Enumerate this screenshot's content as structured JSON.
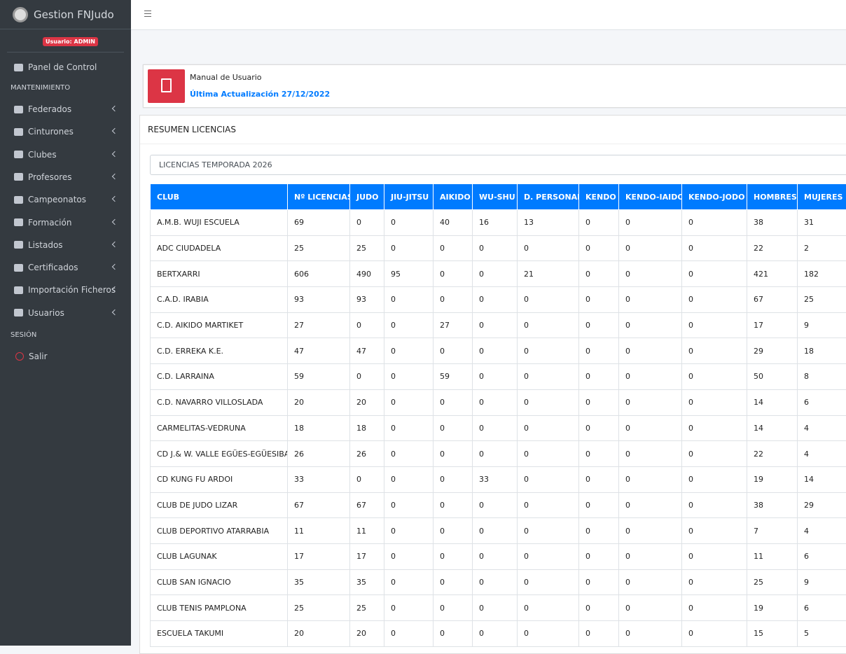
{
  "sidebar": {
    "brand": "Gestion FNJudo",
    "badge": "Usuario: ADMIN",
    "top_item": "Panel de Control",
    "sections": [
      {
        "header": "MANTENIMIENTO",
        "items": [
          "Federados",
          "Cinturones",
          "Clubes",
          "Profesores",
          "Campeonatos",
          "Formación",
          "Listados",
          "Certificados",
          "Importación Ficheros",
          "Usuarios"
        ]
      },
      {
        "header": "SESIÓN",
        "items": [
          "Salir"
        ]
      }
    ]
  },
  "manual": {
    "title": "Manual de Usuario",
    "updated": "Última Actualización 27/12/2022"
  },
  "summary": {
    "title": "RESUMEN LICENCIAS",
    "select": "LICENCIAS TEMPORADA 2026"
  },
  "table": {
    "headers": [
      "CLUB",
      "Nº LICENCIAS",
      "JUDO",
      "JIU-JITSU",
      "AIKIDO",
      "WU-SHU",
      "D. PERSONAL",
      "KENDO",
      "KENDO-IAIDO",
      "KENDO-JODO",
      "HOMBRES",
      "MUJERES"
    ],
    "rows": [
      [
        "A.M.B. WUJI ESCUELA",
        69,
        0,
        0,
        40,
        16,
        13,
        0,
        0,
        0,
        38,
        31
      ],
      [
        "ADC CIUDADELA",
        25,
        25,
        0,
        0,
        0,
        0,
        0,
        0,
        0,
        22,
        2
      ],
      [
        "BERTXARRI",
        606,
        490,
        95,
        0,
        0,
        21,
        0,
        0,
        0,
        421,
        182
      ],
      [
        "C.A.D. IRABIA",
        93,
        93,
        0,
        0,
        0,
        0,
        0,
        0,
        0,
        67,
        25
      ],
      [
        "C.D. AIKIDO MARTIKET",
        27,
        0,
        0,
        27,
        0,
        0,
        0,
        0,
        0,
        17,
        9
      ],
      [
        "C.D. ERREKA K.E.",
        47,
        47,
        0,
        0,
        0,
        0,
        0,
        0,
        0,
        29,
        18
      ],
      [
        "C.D. LARRAINA",
        59,
        0,
        0,
        59,
        0,
        0,
        0,
        0,
        0,
        50,
        8
      ],
      [
        "C.D. NAVARRO VILLOSLADA",
        20,
        20,
        0,
        0,
        0,
        0,
        0,
        0,
        0,
        14,
        6
      ],
      [
        "CARMELITAS-VEDRUNA",
        18,
        18,
        0,
        0,
        0,
        0,
        0,
        0,
        0,
        14,
        4
      ],
      [
        "CD J.& W. VALLE EGÜES-EGÜESIBAR",
        26,
        26,
        0,
        0,
        0,
        0,
        0,
        0,
        0,
        22,
        4
      ],
      [
        "CD KUNG FU ARDOI",
        33,
        0,
        0,
        0,
        33,
        0,
        0,
        0,
        0,
        19,
        14
      ],
      [
        "CLUB DE JUDO LIZAR",
        67,
        67,
        0,
        0,
        0,
        0,
        0,
        0,
        0,
        38,
        29
      ],
      [
        "CLUB DEPORTIVO ATARRABIA",
        11,
        11,
        0,
        0,
        0,
        0,
        0,
        0,
        0,
        7,
        4
      ],
      [
        "CLUB LAGUNAK",
        17,
        17,
        0,
        0,
        0,
        0,
        0,
        0,
        0,
        11,
        6
      ],
      [
        "CLUB SAN IGNACIO",
        35,
        35,
        0,
        0,
        0,
        0,
        0,
        0,
        0,
        25,
        9
      ],
      [
        "CLUB TENIS PAMPLONA",
        25,
        25,
        0,
        0,
        0,
        0,
        0,
        0,
        0,
        19,
        6
      ],
      [
        "ESCUELA TAKUMI",
        20,
        20,
        0,
        0,
        0,
        0,
        0,
        0,
        0,
        15,
        5
      ]
    ]
  }
}
